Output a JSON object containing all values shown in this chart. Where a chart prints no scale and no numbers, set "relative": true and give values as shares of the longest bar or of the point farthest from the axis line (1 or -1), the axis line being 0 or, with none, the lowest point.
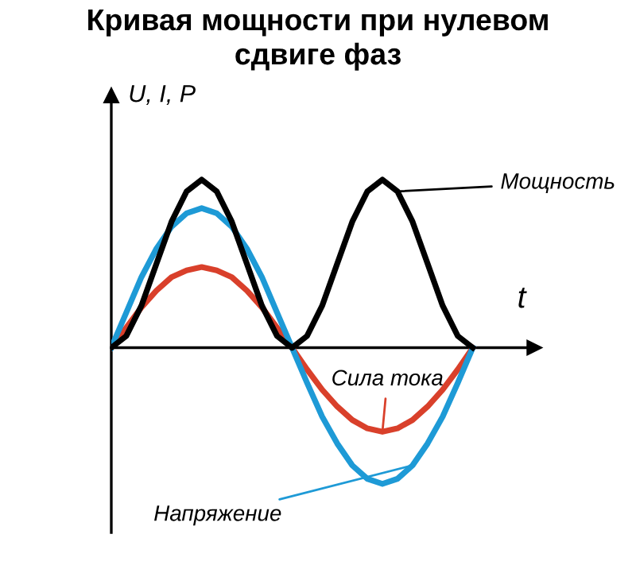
{
  "chart_data": {
    "type": "line",
    "title": "Кривая мощности при нулевом\nсдвиге фаз",
    "xlabel": "t",
    "ylabel": "U, I, P",
    "relative": true,
    "marker": "none",
    "line_style": "solid",
    "categories": [
      null,
      null,
      null,
      null,
      null,
      null,
      null,
      null,
      null,
      null,
      null,
      null,
      null,
      null,
      null,
      null,
      null,
      null,
      null,
      null,
      null,
      null,
      null,
      null,
      null
    ],
    "series": [
      {
        "name": "Мощность",
        "color": "#000000",
        "values": [
          0,
          0.07,
          0.25,
          0.5,
          0.75,
          0.93,
          1,
          0.93,
          0.75,
          0.5,
          0.25,
          0.07,
          0,
          0.07,
          0.25,
          0.5,
          0.75,
          0.93,
          1,
          0.93,
          0.75,
          0.5,
          0.25,
          0.07,
          0
        ]
      },
      {
        "name": "Напряжение",
        "color": "#1e9ad6",
        "values": [
          0,
          0.21,
          0.42,
          0.59,
          0.72,
          0.8,
          0.83,
          0.8,
          0.72,
          0.59,
          0.42,
          0.21,
          0,
          -0.21,
          -0.41,
          -0.57,
          -0.7,
          -0.78,
          -0.81,
          -0.78,
          -0.7,
          -0.57,
          -0.41,
          -0.21,
          0
        ]
      },
      {
        "name": "Сила тока",
        "color": "#d9402b",
        "values": [
          0,
          0.12,
          0.24,
          0.34,
          0.42,
          0.46,
          0.48,
          0.46,
          0.42,
          0.34,
          0.24,
          0.12,
          0,
          -0.13,
          -0.25,
          -0.35,
          -0.43,
          -0.48,
          -0.5,
          -0.48,
          -0.43,
          -0.35,
          -0.25,
          -0.13,
          0
        ]
      }
    ]
  }
}
